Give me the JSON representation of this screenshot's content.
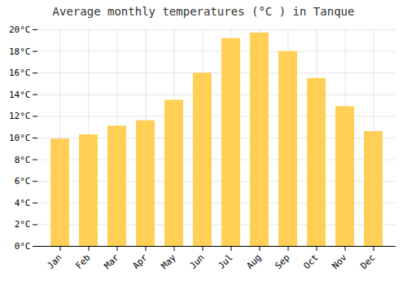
{
  "chart_data": {
    "type": "bar",
    "title": "Average monthly temperatures (°C ) in Tanque",
    "categories": [
      "Jan",
      "Feb",
      "Mar",
      "Apr",
      "May",
      "Jun",
      "Jul",
      "Aug",
      "Sep",
      "Oct",
      "Nov",
      "Dec"
    ],
    "values": [
      9.9,
      10.3,
      11.1,
      11.6,
      13.5,
      16.0,
      19.2,
      19.7,
      18.0,
      15.5,
      12.9,
      10.6
    ],
    "color": "#FFD055",
    "ylim": [
      0,
      20
    ],
    "yticks": [
      {
        "value": 0,
        "label": "0°C"
      },
      {
        "value": 2,
        "label": "2°C"
      },
      {
        "value": 4,
        "label": "4°C"
      },
      {
        "value": 6,
        "label": "6°C"
      },
      {
        "value": 8,
        "label": "8°C"
      },
      {
        "value": 10,
        "label": "10°C"
      },
      {
        "value": 12,
        "label": "12°C"
      },
      {
        "value": 14,
        "label": "14°C"
      },
      {
        "value": 16,
        "label": "16°C"
      },
      {
        "value": 18,
        "label": "18°C"
      },
      {
        "value": 20,
        "label": "20°C"
      }
    ],
    "grid": true
  }
}
